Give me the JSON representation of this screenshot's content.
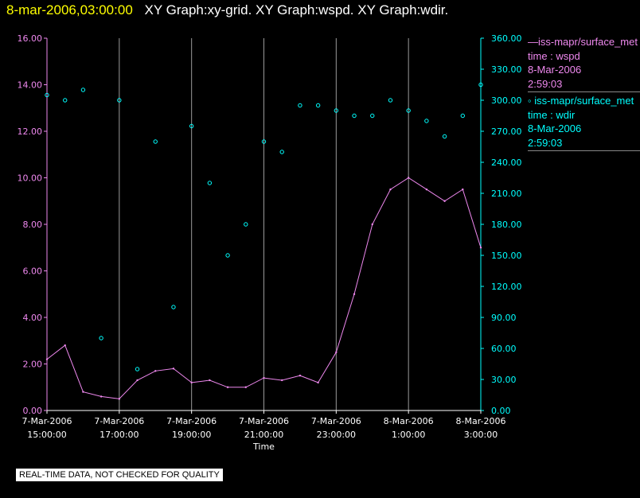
{
  "header": {
    "datetime": "8-mar-2006,03:00:00",
    "title": "XY Graph:xy-grid.  XY Graph:wspd.  XY Graph:wdir."
  },
  "chart_data": {
    "type": "line",
    "xlabel": "Time",
    "x_ticks": [
      {
        "date": "7-Mar-2006",
        "time": "15:00:00"
      },
      {
        "date": "7-Mar-2006",
        "time": "17:00:00"
      },
      {
        "date": "7-Mar-2006",
        "time": "19:00:00"
      },
      {
        "date": "7-Mar-2006",
        "time": "21:00:00"
      },
      {
        "date": "7-Mar-2006",
        "time": "23:00:00"
      },
      {
        "date": "8-Mar-2006",
        "time": "1:00:00"
      },
      {
        "date": "8-Mar-2006",
        "time": "3:00:00"
      }
    ],
    "xlim": [
      "7-Mar-2006 15:00:00",
      "8-Mar-2006 03:00:00"
    ],
    "y_left": {
      "ticks": [
        "0.00",
        "2.00",
        "4.00",
        "6.00",
        "8.00",
        "10.00",
        "12.00",
        "14.00",
        "16.00"
      ],
      "ylim": [
        0,
        16
      ]
    },
    "y_right": {
      "ticks": [
        "0.00",
        "30.00",
        "60.00",
        "90.00",
        "120.00",
        "150.00",
        "180.00",
        "210.00",
        "240.00",
        "270.00",
        "300.00",
        "330.00",
        "360.00"
      ],
      "ylim": [
        0,
        360
      ]
    },
    "grid": {
      "vertical": true,
      "horizontal": false
    },
    "series": [
      {
        "name": "iss-mapr/surface_met",
        "variable": "wspd",
        "axis": "left",
        "style": "line",
        "color": "#ee88ee",
        "x_hours": [
          0,
          0.5,
          1,
          1.5,
          2,
          2.5,
          3,
          3.5,
          4,
          4.5,
          5,
          5.5,
          6,
          6.5,
          7,
          7.5,
          8,
          8.5,
          9,
          9.5,
          10,
          10.5,
          11,
          11.5,
          12
        ],
        "values": [
          2.2,
          2.8,
          0.8,
          0.6,
          0.5,
          1.3,
          1.7,
          1.8,
          1.2,
          1.3,
          1.0,
          1.0,
          1.4,
          1.3,
          1.5,
          1.2,
          2.5,
          5.0,
          8.0,
          9.5,
          10.0,
          9.5,
          9.0,
          9.5,
          7.0
        ]
      },
      {
        "name": "iss-mapr/surface_met",
        "variable": "wdir",
        "axis": "right",
        "style": "scatter",
        "color": "#00ffff",
        "x_hours": [
          0,
          0.5,
          1,
          1.5,
          2,
          2.5,
          3,
          3.5,
          4,
          4.5,
          5,
          5.5,
          6,
          6.5,
          7,
          7.5,
          8,
          8.5,
          9,
          9.5,
          10,
          10.5,
          11,
          11.5,
          12
        ],
        "values": [
          305,
          300,
          310,
          70,
          300,
          40,
          260,
          100,
          275,
          220,
          150,
          180,
          260,
          250,
          295,
          295,
          290,
          285,
          285,
          300,
          290,
          280,
          265,
          285,
          315
        ]
      }
    ]
  },
  "legend": [
    {
      "line1": "iss-mapr/surface_met",
      "line2": "time : wspd",
      "line3": "8-Mar-2006",
      "line4": "2:59:03"
    },
    {
      "line1": "iss-mapr/surface_met",
      "line2": "time : wdir",
      "line3": "8-Mar-2006",
      "line4": "2:59:03"
    }
  ],
  "footer": {
    "quality": "REAL-TIME DATA, NOT CHECKED FOR QUALITY"
  }
}
